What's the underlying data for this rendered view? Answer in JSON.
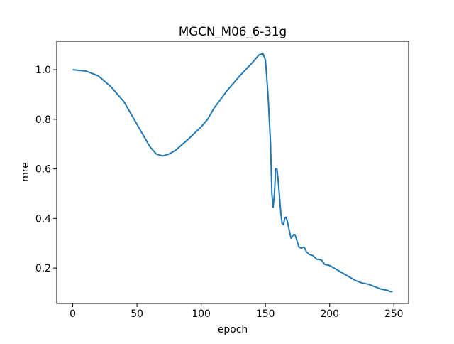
{
  "chart_data": {
    "type": "line",
    "title": "MGCN_M06_6-31g",
    "x_label": "epoch",
    "y_label": "mre",
    "x": [
      0,
      10,
      20,
      30,
      40,
      50,
      60,
      65,
      70,
      75,
      80,
      90,
      100,
      105,
      110,
      120,
      130,
      140,
      145,
      148,
      150,
      152,
      154,
      155,
      156,
      157,
      158,
      159,
      160,
      162,
      163,
      164,
      165,
      166,
      167,
      169,
      170,
      172,
      173,
      174,
      176,
      178,
      180,
      182,
      184,
      187,
      190,
      192,
      194,
      196,
      200,
      205,
      210,
      215,
      220,
      225,
      230,
      235,
      240,
      245,
      247,
      249
    ],
    "values": [
      1.0,
      0.995,
      0.975,
      0.93,
      0.87,
      0.78,
      0.69,
      0.66,
      0.652,
      0.66,
      0.675,
      0.72,
      0.77,
      0.8,
      0.845,
      0.915,
      0.975,
      1.03,
      1.06,
      1.065,
      1.04,
      0.9,
      0.7,
      0.5,
      0.445,
      0.5,
      0.6,
      0.6,
      0.55,
      0.42,
      0.38,
      0.375,
      0.4,
      0.405,
      0.39,
      0.34,
      0.32,
      0.335,
      0.335,
      0.32,
      0.285,
      0.28,
      0.285,
      0.265,
      0.255,
      0.25,
      0.235,
      0.235,
      0.23,
      0.215,
      0.21,
      0.195,
      0.18,
      0.165,
      0.15,
      0.14,
      0.135,
      0.125,
      0.115,
      0.11,
      0.105,
      0.105
    ],
    "color": "#1f77b4",
    "xlim": [
      -12.45,
      261.45
    ],
    "xticks": [
      0,
      50,
      100,
      150,
      200,
      250
    ],
    "ylim": [
      0.057,
      1.115
    ],
    "yticks": [
      0.2,
      0.4,
      0.6,
      0.8,
      {
        "value": 1,
        "label": "1.0"
      }
    ],
    "grid": false
  }
}
